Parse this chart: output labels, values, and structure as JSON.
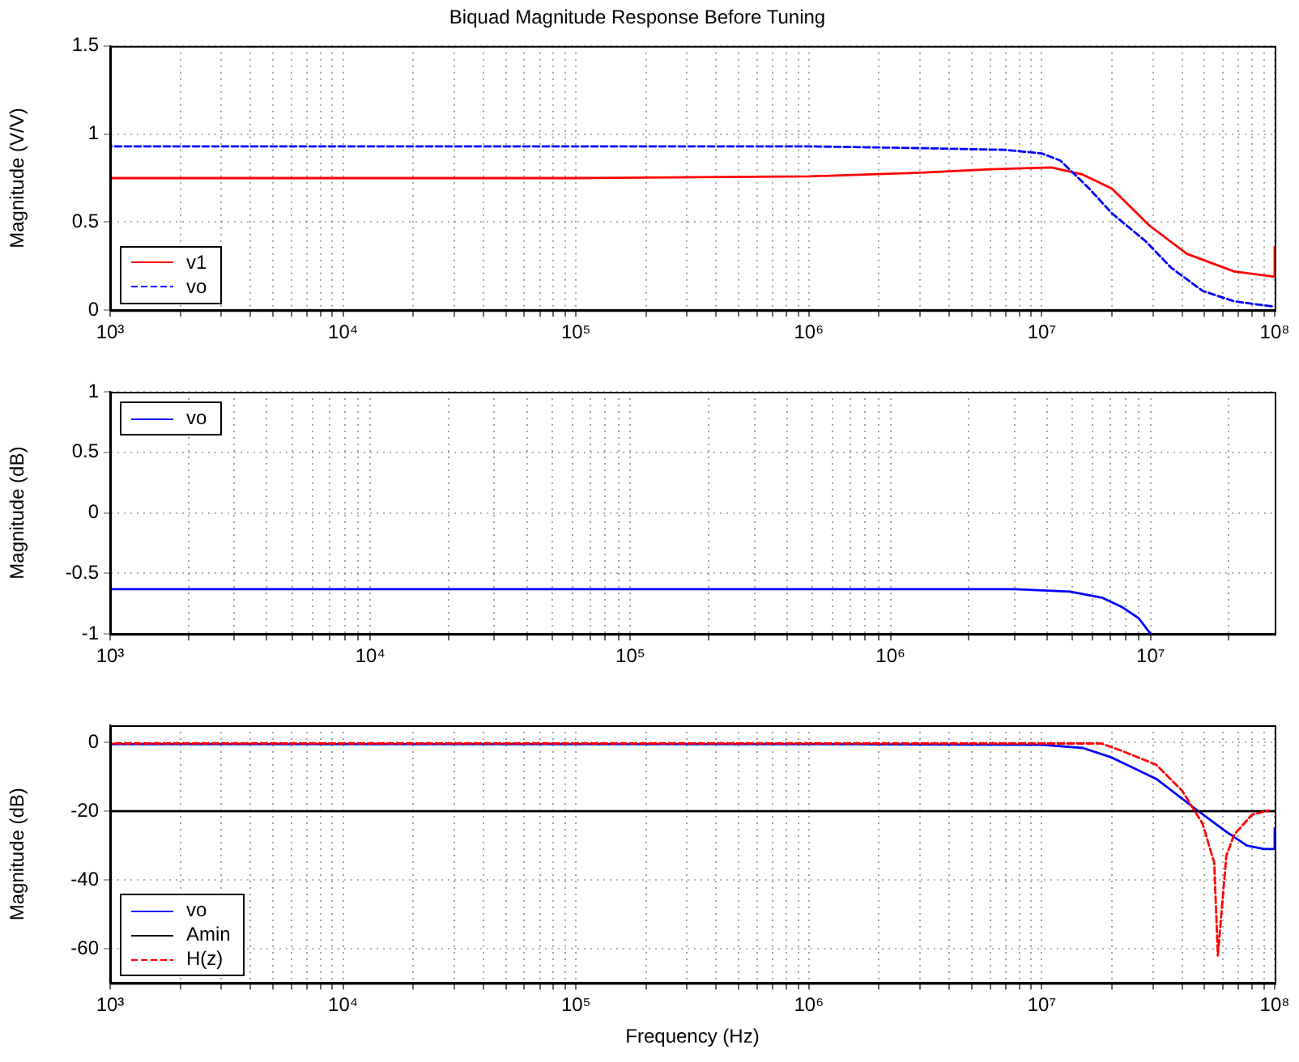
{
  "chart_data": [
    {
      "type": "line",
      "title": "Biquad Magnitude Response Before Tuning",
      "ylabel": "Magnitude (V/V)",
      "log": "x",
      "grid": true,
      "legend": "bottom left",
      "marker": "none",
      "xlim": [
        1000,
        100000000
      ],
      "ylim": [
        0,
        1.5
      ],
      "yticks": [
        0,
        0.5,
        1,
        1.5
      ],
      "xticks": [
        {
          "value": 1000,
          "label": "10³"
        },
        {
          "value": 2000,
          "label": null
        },
        {
          "value": 3000,
          "label": null
        },
        {
          "value": 4000,
          "label": null
        },
        {
          "value": 5000,
          "label": null
        },
        {
          "value": 6000,
          "label": null
        },
        {
          "value": 7000,
          "label": null
        },
        {
          "value": 8000,
          "label": null
        },
        {
          "value": 9000,
          "label": null
        },
        {
          "value": 10000,
          "label": "10⁴"
        },
        {
          "value": 20000,
          "label": null
        },
        {
          "value": 30000,
          "label": null
        },
        {
          "value": 40000,
          "label": null
        },
        {
          "value": 50000,
          "label": null
        },
        {
          "value": 60000,
          "label": null
        },
        {
          "value": 70000,
          "label": null
        },
        {
          "value": 80000,
          "label": null
        },
        {
          "value": 90000,
          "label": null
        },
        {
          "value": 100000,
          "label": "10⁵"
        },
        {
          "value": 200000,
          "label": null
        },
        {
          "value": 300000,
          "label": null
        },
        {
          "value": 400000,
          "label": null
        },
        {
          "value": 500000,
          "label": null
        },
        {
          "value": 600000,
          "label": null
        },
        {
          "value": 700000,
          "label": null
        },
        {
          "value": 800000,
          "label": null
        },
        {
          "value": 900000,
          "label": null
        },
        {
          "value": 1000000,
          "label": "10⁶"
        },
        {
          "value": 2000000,
          "label": null
        },
        {
          "value": 3000000,
          "label": null
        },
        {
          "value": 4000000,
          "label": null
        },
        {
          "value": 5000000,
          "label": null
        },
        {
          "value": 6000000,
          "label": null
        },
        {
          "value": 7000000,
          "label": null
        },
        {
          "value": 8000000,
          "label": null
        },
        {
          "value": 9000000,
          "label": null
        },
        {
          "value": 10000000,
          "label": "10⁷"
        },
        {
          "value": 20000000,
          "label": null
        },
        {
          "value": 30000000,
          "label": null
        },
        {
          "value": 40000000,
          "label": null
        },
        {
          "value": 50000000,
          "label": null
        },
        {
          "value": 60000000,
          "label": null
        },
        {
          "value": 70000000,
          "label": null
        },
        {
          "value": 80000000,
          "label": null
        },
        {
          "value": 90000000,
          "label": null
        },
        {
          "value": 100000000,
          "label": "10⁸"
        }
      ],
      "series": [
        {
          "name": "v1",
          "color": "#ff0000",
          "line_style": "solid",
          "x": [
            1000,
            10000,
            100000,
            1000000,
            3000000,
            6000000,
            11000000,
            15000000,
            20000000,
            29000000,
            42000000,
            67000000,
            100000000,
            100000000
          ],
          "values": [
            0.75,
            0.75,
            0.75,
            0.76,
            0.78,
            0.8,
            0.81,
            0.77,
            0.69,
            0.48,
            0.32,
            0.22,
            0.19,
            0.36
          ]
        },
        {
          "name": "vo",
          "color": "#0000ff",
          "line_style": "dashed",
          "x": [
            1000,
            1000000,
            3000000,
            7000000,
            10000000,
            12000000,
            16000000,
            20000000,
            28000000,
            36000000,
            49000000,
            67000000,
            100000000
          ],
          "values": [
            0.93,
            0.93,
            0.92,
            0.91,
            0.89,
            0.85,
            0.69,
            0.55,
            0.39,
            0.24,
            0.11,
            0.05,
            0.02
          ]
        }
      ]
    },
    {
      "type": "line",
      "ylabel": "Magnitude (dB)",
      "log": "x",
      "grid": true,
      "legend": "top left",
      "marker": "none",
      "xlim": [
        1000,
        30000000
      ],
      "ylim": [
        -1,
        1
      ],
      "yticks": [
        -1,
        -0.5,
        0,
        0.5,
        1
      ],
      "xticks": [
        {
          "value": 1000,
          "label": "10³"
        },
        {
          "value": 2000,
          "label": null
        },
        {
          "value": 3000,
          "label": null
        },
        {
          "value": 4000,
          "label": null
        },
        {
          "value": 5000,
          "label": null
        },
        {
          "value": 6000,
          "label": null
        },
        {
          "value": 7000,
          "label": null
        },
        {
          "value": 8000,
          "label": null
        },
        {
          "value": 9000,
          "label": null
        },
        {
          "value": 10000,
          "label": "10⁴"
        },
        {
          "value": 20000,
          "label": null
        },
        {
          "value": 30000,
          "label": null
        },
        {
          "value": 40000,
          "label": null
        },
        {
          "value": 50000,
          "label": null
        },
        {
          "value": 60000,
          "label": null
        },
        {
          "value": 70000,
          "label": null
        },
        {
          "value": 80000,
          "label": null
        },
        {
          "value": 90000,
          "label": null
        },
        {
          "value": 100000,
          "label": "10⁵"
        },
        {
          "value": 200000,
          "label": null
        },
        {
          "value": 300000,
          "label": null
        },
        {
          "value": 400000,
          "label": null
        },
        {
          "value": 500000,
          "label": null
        },
        {
          "value": 600000,
          "label": null
        },
        {
          "value": 700000,
          "label": null
        },
        {
          "value": 800000,
          "label": null
        },
        {
          "value": 900000,
          "label": null
        },
        {
          "value": 1000000,
          "label": "10⁶"
        },
        {
          "value": 2000000,
          "label": null
        },
        {
          "value": 3000000,
          "label": null
        },
        {
          "value": 4000000,
          "label": null
        },
        {
          "value": 5000000,
          "label": null
        },
        {
          "value": 6000000,
          "label": null
        },
        {
          "value": 7000000,
          "label": null
        },
        {
          "value": 8000000,
          "label": null
        },
        {
          "value": 9000000,
          "label": null
        },
        {
          "value": 10000000,
          "label": "10⁷"
        },
        {
          "value": 20000000,
          "label": null
        }
      ],
      "series": [
        {
          "name": "vo",
          "color": "#0000ff",
          "line_style": "solid",
          "x": [
            1000,
            100000,
            1000000,
            3000000,
            4900000,
            6500000,
            7800000,
            9000000,
            10000000
          ],
          "values": [
            -0.63,
            -0.63,
            -0.63,
            -0.63,
            -0.65,
            -0.7,
            -0.78,
            -0.87,
            -1
          ]
        }
      ]
    },
    {
      "type": "line",
      "xlabel": "Frequency (Hz)",
      "ylabel": "Magnitude (dB)",
      "log": "x",
      "grid": true,
      "legend": "bottom left",
      "marker": "none",
      "xlim": [
        1000,
        100000000
      ],
      "ylim": [
        -70,
        5
      ],
      "yticks": [
        -60,
        -40,
        -20,
        0
      ],
      "xticks": [
        {
          "value": 1000,
          "label": "10³"
        },
        {
          "value": 2000,
          "label": null
        },
        {
          "value": 3000,
          "label": null
        },
        {
          "value": 4000,
          "label": null
        },
        {
          "value": 5000,
          "label": null
        },
        {
          "value": 6000,
          "label": null
        },
        {
          "value": 7000,
          "label": null
        },
        {
          "value": 8000,
          "label": null
        },
        {
          "value": 9000,
          "label": null
        },
        {
          "value": 10000,
          "label": "10⁴"
        },
        {
          "value": 20000,
          "label": null
        },
        {
          "value": 30000,
          "label": null
        },
        {
          "value": 40000,
          "label": null
        },
        {
          "value": 50000,
          "label": null
        },
        {
          "value": 60000,
          "label": null
        },
        {
          "value": 70000,
          "label": null
        },
        {
          "value": 80000,
          "label": null
        },
        {
          "value": 90000,
          "label": null
        },
        {
          "value": 100000,
          "label": "10⁵"
        },
        {
          "value": 200000,
          "label": null
        },
        {
          "value": 300000,
          "label": null
        },
        {
          "value": 400000,
          "label": null
        },
        {
          "value": 500000,
          "label": null
        },
        {
          "value": 600000,
          "label": null
        },
        {
          "value": 700000,
          "label": null
        },
        {
          "value": 800000,
          "label": null
        },
        {
          "value": 900000,
          "label": null
        },
        {
          "value": 1000000,
          "label": "10⁶"
        },
        {
          "value": 2000000,
          "label": null
        },
        {
          "value": 3000000,
          "label": null
        },
        {
          "value": 4000000,
          "label": null
        },
        {
          "value": 5000000,
          "label": null
        },
        {
          "value": 6000000,
          "label": null
        },
        {
          "value": 7000000,
          "label": null
        },
        {
          "value": 8000000,
          "label": null
        },
        {
          "value": 9000000,
          "label": null
        },
        {
          "value": 10000000,
          "label": "10⁷"
        },
        {
          "value": 20000000,
          "label": null
        },
        {
          "value": 30000000,
          "label": null
        },
        {
          "value": 40000000,
          "label": null
        },
        {
          "value": 50000000,
          "label": null
        },
        {
          "value": 60000000,
          "label": null
        },
        {
          "value": 70000000,
          "label": null
        },
        {
          "value": 80000000,
          "label": null
        },
        {
          "value": 90000000,
          "label": null
        },
        {
          "value": 100000000,
          "label": "10⁸"
        }
      ],
      "series": [
        {
          "name": "vo",
          "color": "#0000ff",
          "line_style": "solid",
          "x": [
            1000,
            1000000,
            10000000,
            15000000,
            20000000,
            31000000,
            46000000,
            62000000,
            76000000,
            90000000,
            100000000,
            100000000
          ],
          "values": [
            -0.5,
            -0.5,
            -0.7,
            -1.6,
            -4.4,
            -10.6,
            -19.5,
            -26,
            -30,
            -31,
            -31,
            -25
          ]
        },
        {
          "name": "Amin",
          "color": "#000000",
          "line_style": "solid",
          "x": [
            1000,
            100000000
          ],
          "values": [
            -20,
            -20
          ]
        },
        {
          "name": "H(z)",
          "color": "#ff0000",
          "line_style": "dashed",
          "x": [
            1000,
            10000000,
            18000000,
            22000000,
            31000000,
            40000000,
            49000000,
            55000000,
            57000000,
            62000000,
            67000000,
            80000000,
            94000000
          ],
          "values": [
            -0.3,
            -0.3,
            -0.3,
            -2.4,
            -6.5,
            -14,
            -23.6,
            -35,
            -62,
            -33,
            -26.8,
            -21,
            -19.8
          ]
        }
      ]
    }
  ]
}
